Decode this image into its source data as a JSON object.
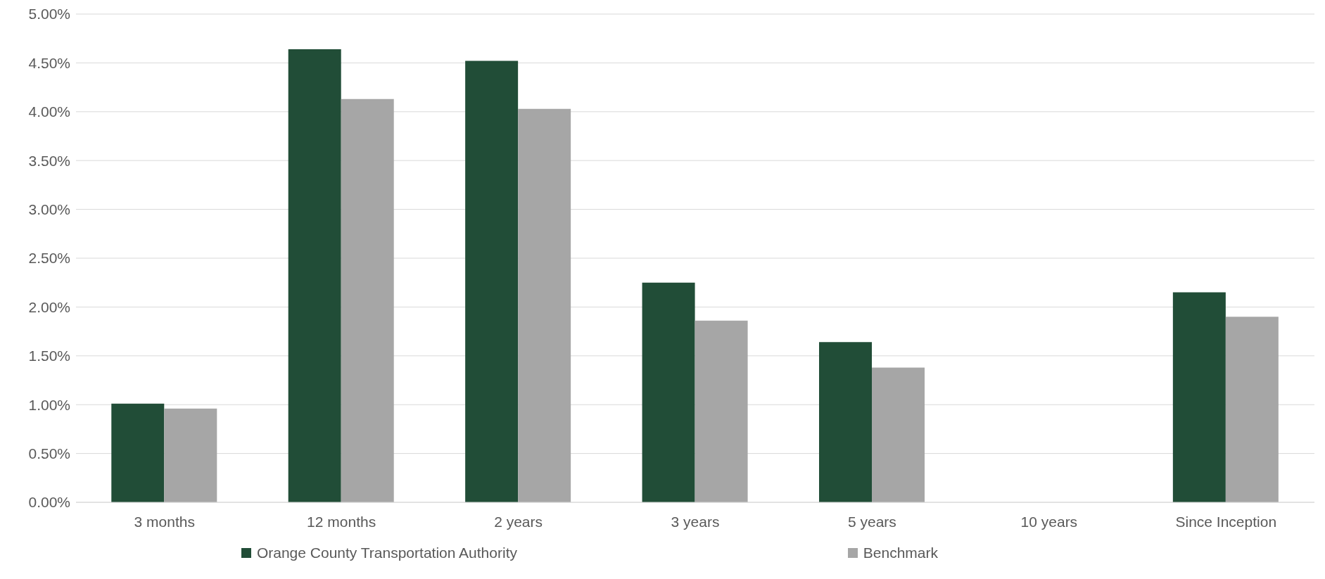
{
  "chart_data": {
    "type": "bar",
    "categories": [
      "3 months",
      "12 months",
      "2 years",
      "3 years",
      "5 years",
      "10 years",
      "Since Inception"
    ],
    "series": [
      {
        "name": "Orange County Transportation Authority",
        "color": "#214d37",
        "values": [
          1.01,
          4.64,
          4.52,
          2.25,
          1.64,
          null,
          2.15
        ]
      },
      {
        "name": "Benchmark",
        "color": "#a6a6a6",
        "values": [
          0.96,
          4.13,
          4.03,
          1.86,
          1.38,
          null,
          1.9
        ]
      }
    ],
    "ylim": [
      0,
      5
    ],
    "yticks": [
      {
        "value": 0,
        "label": "0.00%"
      },
      {
        "value": 0.5,
        "label": "0.50%"
      },
      {
        "value": 1,
        "label": "1.00%"
      },
      {
        "value": 1.5,
        "label": "1.50%"
      },
      {
        "value": 2,
        "label": "2.00%"
      },
      {
        "value": 2.5,
        "label": "2.50%"
      },
      {
        "value": 3,
        "label": "3.00%"
      },
      {
        "value": 3.5,
        "label": "3.50%"
      },
      {
        "value": 4,
        "label": "4.00%"
      },
      {
        "value": 4.5,
        "label": "4.50%"
      },
      {
        "value": 5,
        "label": "5.00%"
      }
    ],
    "grid": "y",
    "legend": "bottom"
  }
}
